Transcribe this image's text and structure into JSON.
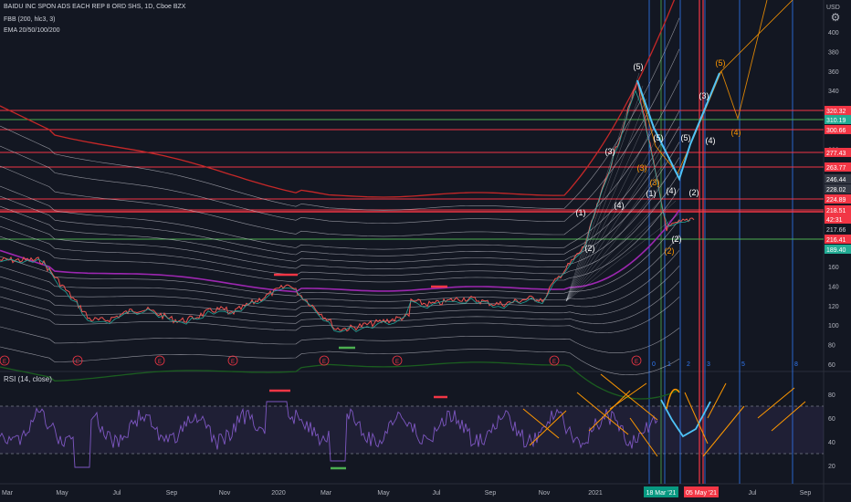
{
  "header": {
    "symbol_line": "BAIDU INC SPON ADS EACH REP 8 ORD SHS, 1D, Cboe BZX",
    "fbb_label": "FBB (200, hlc3, 3)",
    "ema_label": "EMA 20/50/100/200",
    "currency": "USD"
  },
  "rsi_pane": {
    "label": "RSI (14, close)",
    "ticks": [
      "80",
      "60",
      "40",
      "20"
    ],
    "upper_band": 70,
    "lower_band": 30
  },
  "price_axis": {
    "ticks": [
      "400",
      "380",
      "360",
      "340",
      "320",
      "300",
      "280",
      "260",
      "240",
      "220",
      "200",
      "180",
      "160",
      "140",
      "120",
      "100",
      "80",
      "60"
    ]
  },
  "price_tags": [
    {
      "label": "320.32",
      "color": "#f23645"
    },
    {
      "label": "310.19",
      "color": "#22ab94"
    },
    {
      "label": "300.66",
      "color": "#f23645"
    },
    {
      "label": "277.43",
      "color": "#f23645"
    },
    {
      "label": "263.77",
      "color": "#f23645"
    },
    {
      "label": "246.44",
      "color": "#363a45"
    },
    {
      "label": "228.02",
      "color": "#363a45"
    },
    {
      "label": "224.89",
      "color": "#f23645"
    },
    {
      "label": "218.51",
      "color": "#f23645"
    },
    {
      "label": "42:31",
      "color": "#f23645"
    },
    {
      "label": "217.66",
      "color": "#131722"
    },
    {
      "label": "216.41",
      "color": "#f23645"
    },
    {
      "label": "189.40",
      "color": "#22ab94"
    }
  ],
  "time_axis": {
    "labels": [
      "Mar",
      "May",
      "Jul",
      "Sep",
      "Nov",
      "2020",
      "Mar",
      "May",
      "Jul",
      "Sep",
      "Nov",
      "2021",
      "Jul",
      "Sep"
    ],
    "highlight_labels": [
      "18 Mar '21",
      "05 May '21"
    ],
    "highlight_colors": [
      "#089981",
      "#f23645"
    ]
  },
  "earnings_marker": "E",
  "fib_time_labels": [
    "0",
    "1",
    "2",
    "3",
    "5",
    "8"
  ],
  "wave_labels": {
    "primary": [
      "(5)",
      "(3)",
      "(1)",
      "(2)",
      "(4)",
      "(5)",
      "(3)",
      "(4)"
    ],
    "minor": [
      "(1)",
      "(2)",
      "(3)",
      "(4)",
      "(5)",
      "(1)",
      "(2)",
      "(3)",
      "(4)",
      "(5)",
      "(4)"
    ],
    "count_labels": [
      "(5)",
      "(3)",
      "(1)",
      "(2)",
      "(4)",
      "(5)",
      "(3)",
      "(4)",
      "(2)",
      "(1)"
    ]
  },
  "colors": {
    "background": "#131722",
    "rsi_line": "#7e57c2",
    "rsi_band_fill": "#7e57c2",
    "upper_band_line": "#c62828",
    "lower_band_line": "#1b5e20",
    "ema_magenta": "#9c27b0",
    "orange": "#ff9800",
    "cyan_path": "#4fc3f7",
    "support_green": "#4caf50",
    "resistance_red": "#f23645"
  }
}
